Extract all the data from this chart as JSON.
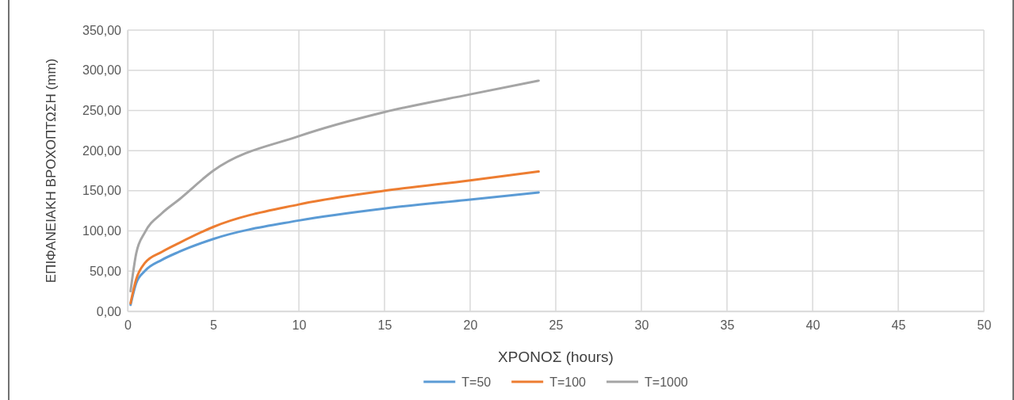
{
  "chart_data": {
    "type": "line",
    "xlabel": "ΧΡΟΝΟΣ (hours)",
    "ylabel": "ΕΠΙΦΑΝΕΙΑΚΗ ΒΡΟΧΟΠΤΩΣΗ (mm)",
    "x": [
      0.17,
      0.5,
      1,
      2,
      3,
      5,
      10,
      15,
      20,
      24
    ],
    "series": [
      {
        "name": "T=50",
        "color": "#5b9bd5",
        "values": [
          8,
          35,
          50,
          64,
          74,
          90,
          113,
          128,
          139,
          148
        ]
      },
      {
        "name": "T=100",
        "color": "#ed7d31",
        "values": [
          10,
          40,
          60,
          74,
          85,
          105,
          133,
          150,
          163,
          174
        ]
      },
      {
        "name": "T=1000",
        "color": "#a5a5a5",
        "values": [
          25,
          72,
          98,
          122,
          139,
          175,
          218,
          248,
          270,
          287
        ]
      }
    ],
    "xlim": [
      0,
      50
    ],
    "xticks": [
      0,
      5,
      10,
      15,
      20,
      25,
      30,
      35,
      40,
      45,
      50
    ],
    "ylim": [
      0,
      350
    ],
    "yticks": [
      {
        "value": 0,
        "label": "0,00"
      },
      {
        "value": 50,
        "label": "50,00"
      },
      {
        "value": 100,
        "label": "100,00"
      },
      {
        "value": 150,
        "label": "150,00"
      },
      {
        "value": 200,
        "label": "200,00"
      },
      {
        "value": 250,
        "label": "250,00"
      },
      {
        "value": 300,
        "label": "300,00"
      },
      {
        "value": 350,
        "label": "350,00"
      }
    ],
    "grid": true,
    "legend": "bottom",
    "marker": "none",
    "line_style": "solid"
  }
}
